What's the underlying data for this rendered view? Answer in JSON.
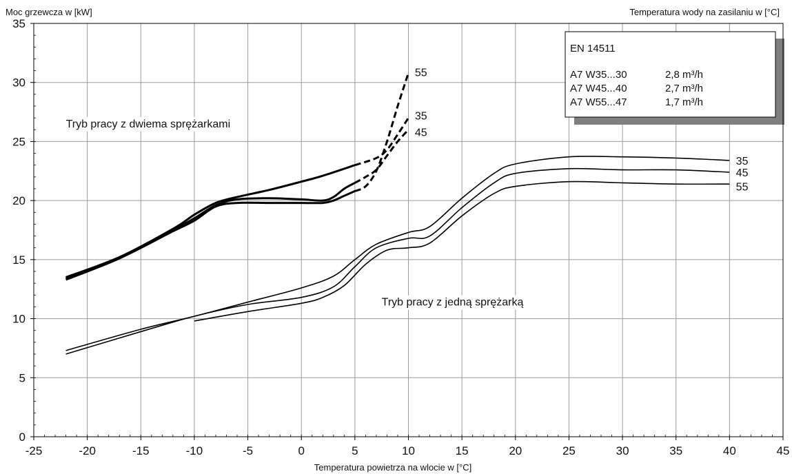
{
  "chart_data": {
    "type": "line",
    "title": "",
    "ylabel": "Moc grzewcza w [kW]",
    "xlabel": "Temperatura powietrza na wlocie w [°C]",
    "right_label": "Temperatura wody na zasilaniu w [°C]",
    "xlim": [
      -25,
      45
    ],
    "ylim": [
      0,
      35
    ],
    "x_ticks": [
      -25,
      -20,
      -15,
      -10,
      -5,
      0,
      5,
      10,
      15,
      20,
      25,
      30,
      35,
      40,
      45
    ],
    "y_ticks": [
      0,
      5,
      10,
      15,
      20,
      25,
      30,
      35
    ],
    "grid": true,
    "annotations": [
      {
        "text": "Tryb pracy z dwiema sprężarkami",
        "x": -22,
        "y": 26.2
      },
      {
        "text": "Tryb pracy z jedną sprężarką",
        "x": 7.5,
        "y": 11.1
      }
    ],
    "legend_box": {
      "title": "EN 14511",
      "rows": [
        {
          "label": "A7 W35...30",
          "value": "2,8 m³/h"
        },
        {
          "label": "A7 W45...40",
          "value": "2,7 m³/h"
        },
        {
          "label": "A7 W55...47",
          "value": "1,7 m³/h"
        }
      ]
    },
    "series": [
      {
        "name": "35",
        "mode": "two",
        "style": "solid",
        "label_x": 10.6,
        "label_y": 27.2,
        "x": [
          -22,
          -17,
          -12,
          -10,
          -8,
          -6,
          -3,
          0,
          2,
          5
        ],
        "y": [
          13.4,
          15.2,
          17.6,
          18.8,
          19.8,
          20.3,
          20.9,
          21.6,
          22.1,
          23.0
        ]
      },
      {
        "name": "35",
        "mode": "two",
        "style": "dashed",
        "x": [
          5,
          7,
          8,
          9,
          10
        ],
        "y": [
          23.0,
          23.6,
          24.3,
          25.6,
          27.0
        ]
      },
      {
        "name": "45",
        "mode": "two",
        "style": "solid",
        "label_x": 10.6,
        "label_y": 25.8,
        "x": [
          -22,
          -17,
          -12,
          -10,
          -8,
          -6,
          -3,
          0,
          2,
          3,
          4,
          5
        ],
        "y": [
          13.5,
          15.2,
          17.5,
          18.5,
          19.6,
          20.1,
          20.2,
          20.1,
          20.0,
          20.3,
          21.0,
          21.5
        ]
      },
      {
        "name": "45",
        "mode": "two",
        "style": "dashed",
        "x": [
          5,
          6,
          7,
          8,
          9,
          10
        ],
        "y": [
          21.5,
          22.0,
          22.6,
          23.8,
          25.0,
          26.0
        ]
      },
      {
        "name": "55",
        "mode": "two",
        "style": "solid",
        "label_x": 10.6,
        "label_y": 30.9,
        "x": [
          -22,
          -17,
          -12,
          -10,
          -8,
          -6,
          -3,
          0,
          2,
          3,
          4,
          5
        ],
        "y": [
          13.3,
          15.1,
          17.4,
          18.3,
          19.5,
          19.8,
          19.8,
          19.8,
          19.8,
          20.0,
          20.4,
          20.8
        ]
      },
      {
        "name": "55",
        "mode": "two",
        "style": "dashed",
        "x": [
          5,
          6,
          7,
          8,
          9,
          10
        ],
        "y": [
          20.8,
          21.2,
          22.5,
          25.0,
          28.0,
          30.8
        ]
      },
      {
        "name": "35",
        "mode": "one",
        "style": "solid",
        "label_x": 40.6,
        "label_y": 23.4,
        "x": [
          -22,
          -15,
          -10,
          -5,
          0,
          3,
          5,
          7,
          10,
          12,
          15,
          18,
          20,
          25,
          30,
          35,
          40
        ],
        "y": [
          7.3,
          9.1,
          10.2,
          11.4,
          12.6,
          13.6,
          15.0,
          16.3,
          17.3,
          17.8,
          20.2,
          22.3,
          23.1,
          23.7,
          23.7,
          23.6,
          23.4
        ]
      },
      {
        "name": "45",
        "mode": "one",
        "style": "solid",
        "label_x": 40.6,
        "label_y": 22.4,
        "x": [
          -22,
          -15,
          -10,
          -5,
          0,
          3,
          5,
          7,
          10,
          12,
          15,
          18,
          20,
          25,
          30,
          35,
          40
        ],
        "y": [
          7.0,
          8.9,
          10.2,
          11.2,
          11.8,
          12.7,
          14.4,
          16.0,
          16.8,
          17.0,
          19.4,
          21.5,
          22.3,
          22.7,
          22.6,
          22.6,
          22.4
        ]
      },
      {
        "name": "55",
        "mode": "one",
        "style": "solid",
        "label_x": 40.6,
        "label_y": 21.2,
        "x": [
          -10,
          -5,
          0,
          2,
          4,
          6,
          8,
          10,
          12,
          15,
          18,
          20,
          25,
          30,
          35,
          40
        ],
        "y": [
          9.8,
          10.6,
          11.3,
          11.8,
          12.8,
          14.6,
          15.8,
          16.0,
          16.4,
          18.7,
          20.6,
          21.2,
          21.6,
          21.5,
          21.4,
          21.4
        ]
      }
    ]
  }
}
